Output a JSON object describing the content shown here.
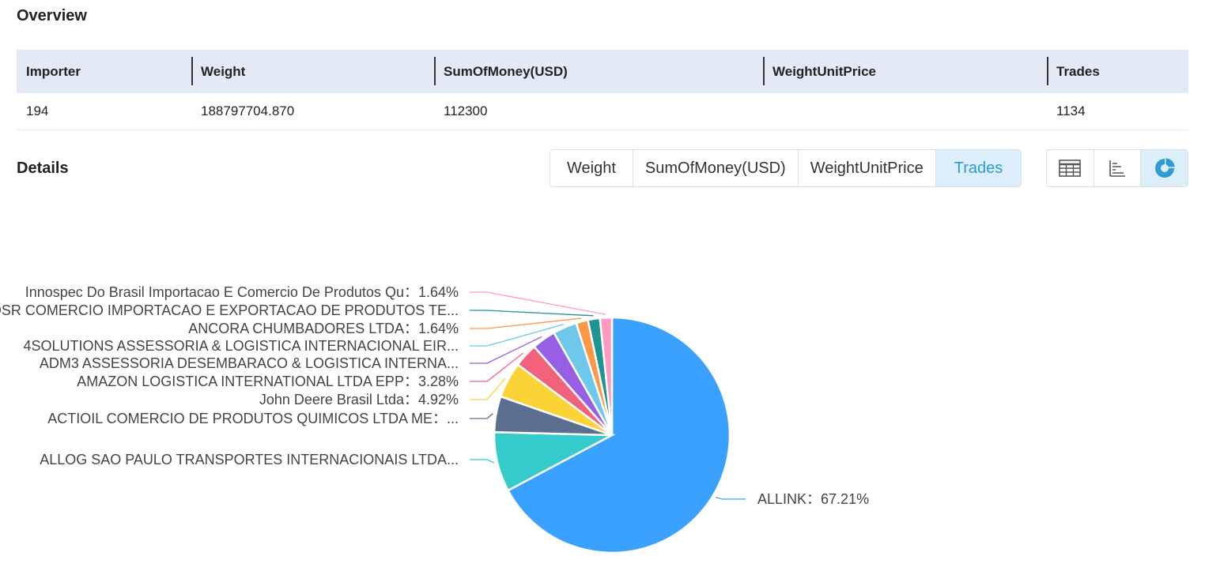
{
  "overview": {
    "title": "Overview",
    "headers": [
      "Importer",
      "Weight",
      "SumOfMoney(USD)",
      "WeightUnitPrice",
      "Trades"
    ],
    "row": [
      "194",
      "188797704.870",
      "112300",
      "",
      "1134"
    ]
  },
  "details": {
    "title": "Details",
    "metric_tabs": [
      "Weight",
      "SumOfMoney(USD)",
      "WeightUnitPrice",
      "Trades"
    ],
    "active_metric": "Trades",
    "view_icons": [
      "table-icon",
      "bar-chart-icon",
      "pie-chart-icon"
    ],
    "active_view": "pie-chart-icon"
  },
  "colors": {
    "accent": "#2f9bd3",
    "active_bg": "#dbeef9",
    "header_bg": "#e4e9f6"
  },
  "chart_data": {
    "type": "pie",
    "slices": [
      {
        "label": "ALLINK",
        "value": 67.21,
        "display": "ALLINK：67.21%",
        "color": "#3ba1ff"
      },
      {
        "label": "ALLOG SAO PAULO TRANSPORTES INTERNACIONAIS LTDA...",
        "value": 8.2,
        "display": "ALLOG SAO PAULO TRANSPORTES INTERNACIONAIS LTDA...",
        "color": "#36cbcb"
      },
      {
        "label": "ACTIOIL COMERCIO DE PRODUTOS QUIMICOS LTDA ME",
        "value": 4.92,
        "display": "ACTIOIL COMERCIO DE PRODUTOS QUIMICOS LTDA ME：...",
        "color": "#5d6f8f"
      },
      {
        "label": "John Deere Brasil Ltda",
        "value": 4.92,
        "display": "John Deere Brasil Ltda：4.92%",
        "color": "#fad337"
      },
      {
        "label": "AMAZON LOGISTICA INTERNATIONAL LTDA EPP",
        "value": 3.28,
        "display": "AMAZON LOGISTICA INTERNATIONAL LTDA EPP：3.28%",
        "color": "#f2637b"
      },
      {
        "label": "ADM3 ASSESSORIA DESEMBARACO & LOGISTICA INTERNA...",
        "value": 3.28,
        "display": "ADM3 ASSESSORIA DESEMBARACO & LOGISTICA INTERNA...",
        "color": "#975fe4"
      },
      {
        "label": "4SOLUTIONS ASSESSORIA & LOGISTICA INTERNACIONAL EIR...",
        "value": 3.28,
        "display": "4SOLUTIONS ASSESSORIA & LOGISTICA INTERNACIONAL EIR...",
        "color": "#6dc8ec"
      },
      {
        "label": "ANCORA CHUMBADORES LTDA",
        "value": 1.64,
        "display": "ANCORA CHUMBADORES LTDA：1.64%",
        "color": "#ff9845"
      },
      {
        "label": "A DSR COMERCIO IMPORTACAO E EXPORTACAO DE PRODUTOS TE...",
        "value": 1.64,
        "display": "A DSR COMERCIO IMPORTACAO E EXPORTACAO DE PRODUTOS TE...",
        "color": "#1e9493"
      },
      {
        "label": "Innospec Do Brasil Importacao E Comercio De Produtos Qu",
        "value": 1.64,
        "display": "Innospec Do Brasil Importacao E Comercio De Produtos Qu：1.64%",
        "color": "#ff99c3"
      }
    ]
  }
}
